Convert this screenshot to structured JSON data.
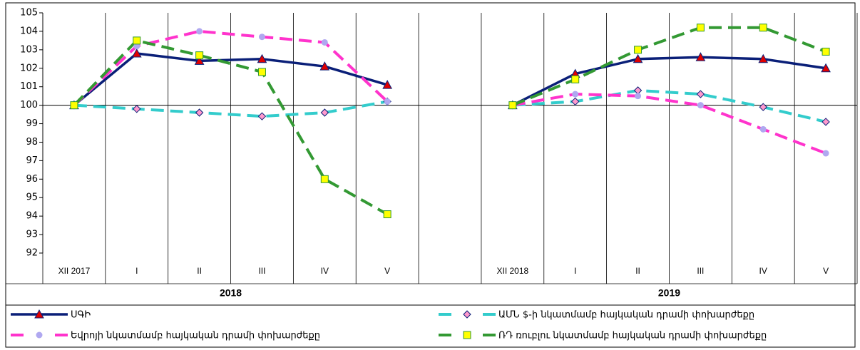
{
  "chart_data": {
    "type": "line",
    "categories": [
      "XII 2017",
      "I",
      "II",
      "III",
      "IV",
      "V",
      null,
      "XII 2018",
      "I",
      "II",
      "III",
      "IV",
      "V"
    ],
    "group_labels": [
      "2018",
      "2019"
    ],
    "ylim": [
      92,
      105
    ],
    "yticks": [
      92,
      93,
      94,
      95,
      96,
      97,
      98,
      99,
      100,
      101,
      102,
      103,
      104,
      105
    ],
    "x_axis_crosses": 100,
    "series": [
      {
        "name": "ՍԳԻ",
        "color": "#0a1f78",
        "marker": "triangle",
        "marker_color": "#e00000",
        "dashed": false,
        "values": [
          100,
          102.8,
          102.4,
          102.5,
          102.1,
          101.1,
          null,
          100,
          101.7,
          102.5,
          102.6,
          102.5,
          102.0
        ]
      },
      {
        "name": "ԱՄՆ $-ի նկատմամբ հայկական դրամի փոխարժեքը",
        "color": "#33cccc",
        "marker": "diamond",
        "marker_color": "#ff99cc",
        "dashed": true,
        "values": [
          100,
          99.8,
          99.6,
          99.4,
          99.6,
          100.2,
          null,
          100,
          100.2,
          100.8,
          100.6,
          99.9,
          99.1
        ]
      },
      {
        "name": "Եվրոյի նկատմամբ հայկական դրամի փոխարժեքը",
        "color": "#ff33cc",
        "marker": "circle",
        "marker_color": "#b0a8f0",
        "dashed": true,
        "values": [
          100,
          103.2,
          104.0,
          103.7,
          103.4,
          100.2,
          null,
          100,
          100.6,
          100.5,
          100.0,
          98.7,
          97.4
        ]
      },
      {
        "name": "ՌԴ ռուբլու նկատմամբ հայկական դրամի փոխարժեքը",
        "color": "#339933",
        "marker": "square",
        "marker_color": "#ffff00",
        "dashed": true,
        "values": [
          100,
          103.5,
          102.7,
          101.8,
          96.0,
          94.1,
          null,
          100,
          101.4,
          103.0,
          104.2,
          104.2,
          102.9
        ]
      }
    ]
  }
}
